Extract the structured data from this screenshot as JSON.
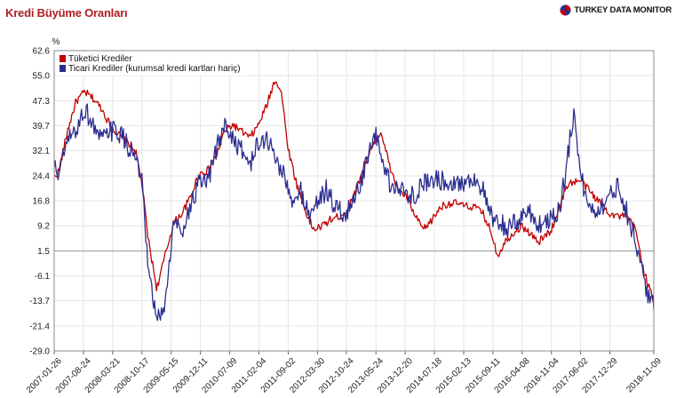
{
  "header": {
    "title": "Kredi Büyüme Oranları",
    "brand": "TURKEY DATA MONITOR"
  },
  "colors": {
    "consumer": "#c00000",
    "commercial": "#2b2e8f",
    "title": "#b01e23",
    "baseline": "#999999"
  },
  "chart_data": {
    "type": "line",
    "title": "Kredi Büyüme Oranları",
    "ylabel": "%",
    "xlabel": "",
    "ylim": [
      -29.0,
      62.6
    ],
    "yticks": [
      "62.6",
      "55.0",
      "47.3",
      "39.7",
      "32.1",
      "24.4",
      "16.8",
      "9.2",
      "1.5",
      "-6.1",
      "-13.7",
      "-21.4",
      "-29.0"
    ],
    "reference_line": 1.5,
    "legend_position": "top-left",
    "xlim": [
      "2007-01-26",
      "2018-11-09"
    ],
    "xticks": [
      "2007-01-26",
      "2007-08-24",
      "2008-03-21",
      "2008-10-17",
      "2009-05-15",
      "2009-12-11",
      "2010-07-09",
      "2011-02-04",
      "2011-09-02",
      "2012-03-30",
      "2012-10-24",
      "2013-05-24",
      "2013-12-20",
      "2014-07-18",
      "2015-02-13",
      "2015-09-11",
      "2016-04-08",
      "2016-11-04",
      "2017-06-02",
      "2017-12-29",
      "2018-11-09"
    ],
    "series": [
      {
        "name": "Tüketici Krediler",
        "color": "#c00000",
        "points": [
          [
            "2007-01-26",
            24
          ],
          [
            "2007-03-01",
            26
          ],
          [
            "2007-05-01",
            38
          ],
          [
            "2007-07-01",
            47
          ],
          [
            "2007-09-01",
            50
          ],
          [
            "2007-11-01",
            48
          ],
          [
            "2008-01-01",
            45
          ],
          [
            "2008-03-01",
            40
          ],
          [
            "2008-05-01",
            37
          ],
          [
            "2008-07-01",
            35
          ],
          [
            "2008-09-01",
            32
          ],
          [
            "2008-10-17",
            22
          ],
          [
            "2008-12-01",
            5
          ],
          [
            "2009-02-01",
            -10
          ],
          [
            "2009-04-01",
            0
          ],
          [
            "2009-06-01",
            10
          ],
          [
            "2009-08-01",
            13
          ],
          [
            "2009-10-01",
            18
          ],
          [
            "2009-12-01",
            25
          ],
          [
            "2010-02-01",
            26
          ],
          [
            "2010-04-01",
            30
          ],
          [
            "2010-06-01",
            38
          ],
          [
            "2010-08-01",
            40
          ],
          [
            "2010-10-01",
            38
          ],
          [
            "2010-12-01",
            36
          ],
          [
            "2011-02-01",
            40
          ],
          [
            "2011-04-01",
            46
          ],
          [
            "2011-06-01",
            54
          ],
          [
            "2011-07-15",
            50
          ],
          [
            "2011-09-01",
            33
          ],
          [
            "2011-11-01",
            22
          ],
          [
            "2012-01-01",
            14
          ],
          [
            "2012-03-01",
            8
          ],
          [
            "2012-05-01",
            9
          ],
          [
            "2012-07-01",
            11
          ],
          [
            "2012-09-01",
            12
          ],
          [
            "2012-11-01",
            14
          ],
          [
            "2013-01-01",
            20
          ],
          [
            "2013-03-01",
            28
          ],
          [
            "2013-05-24",
            35
          ],
          [
            "2013-07-01",
            38
          ],
          [
            "2013-09-01",
            27
          ],
          [
            "2013-11-01",
            20
          ],
          [
            "2014-01-01",
            18
          ],
          [
            "2014-03-01",
            12
          ],
          [
            "2014-05-01",
            8
          ],
          [
            "2014-07-01",
            11
          ],
          [
            "2014-09-01",
            15
          ],
          [
            "2014-11-01",
            16
          ],
          [
            "2015-01-01",
            16
          ],
          [
            "2015-03-01",
            15
          ],
          [
            "2015-05-01",
            15
          ],
          [
            "2015-07-01",
            13
          ],
          [
            "2015-09-01",
            7
          ],
          [
            "2015-10-15",
            0
          ],
          [
            "2015-12-01",
            4
          ],
          [
            "2016-02-01",
            7
          ],
          [
            "2016-04-08",
            9
          ],
          [
            "2016-06-01",
            7
          ],
          [
            "2016-08-01",
            4
          ],
          [
            "2016-11-04",
            8
          ],
          [
            "2017-01-01",
            15
          ],
          [
            "2017-03-01",
            22
          ],
          [
            "2017-06-02",
            23
          ],
          [
            "2017-08-01",
            20
          ],
          [
            "2017-10-01",
            17
          ],
          [
            "2017-12-29",
            13
          ],
          [
            "2018-03-01",
            12
          ],
          [
            "2018-05-01",
            12
          ],
          [
            "2018-07-01",
            8
          ],
          [
            "2018-09-01",
            -5
          ],
          [
            "2018-11-09",
            -14
          ]
        ]
      },
      {
        "name": "Ticari Krediler (kurumsal kredi kartları hariç)",
        "color": "#2b2e8f",
        "points": [
          [
            "2007-01-26",
            27
          ],
          [
            "2007-03-01",
            25
          ],
          [
            "2007-05-01",
            35
          ],
          [
            "2007-07-01",
            38
          ],
          [
            "2007-09-01",
            45
          ],
          [
            "2007-11-01",
            40
          ],
          [
            "2008-01-01",
            35
          ],
          [
            "2008-03-01",
            38
          ],
          [
            "2008-05-01",
            38
          ],
          [
            "2008-07-01",
            34
          ],
          [
            "2008-09-01",
            30
          ],
          [
            "2008-10-17",
            22
          ],
          [
            "2008-12-01",
            -5
          ],
          [
            "2009-02-01",
            -20
          ],
          [
            "2009-04-01",
            -15
          ],
          [
            "2009-06-01",
            10
          ],
          [
            "2009-08-01",
            8
          ],
          [
            "2009-10-01",
            15
          ],
          [
            "2009-12-01",
            22
          ],
          [
            "2010-02-01",
            22
          ],
          [
            "2010-04-01",
            32
          ],
          [
            "2010-06-01",
            40
          ],
          [
            "2010-08-01",
            36
          ],
          [
            "2010-10-01",
            32
          ],
          [
            "2010-12-01",
            28
          ],
          [
            "2011-02-01",
            34
          ],
          [
            "2011-04-01",
            36
          ],
          [
            "2011-06-01",
            30
          ],
          [
            "2011-08-01",
            25
          ],
          [
            "2011-10-01",
            15
          ],
          [
            "2011-12-01",
            20
          ],
          [
            "2012-02-01",
            12
          ],
          [
            "2012-04-01",
            17
          ],
          [
            "2012-06-01",
            20
          ],
          [
            "2012-08-01",
            15
          ],
          [
            "2012-10-24",
            12
          ],
          [
            "2012-12-01",
            17
          ],
          [
            "2013-02-01",
            22
          ],
          [
            "2013-04-01",
            30
          ],
          [
            "2013-05-24",
            37
          ],
          [
            "2013-07-01",
            30
          ],
          [
            "2013-09-01",
            22
          ],
          [
            "2013-12-20",
            19
          ],
          [
            "2014-03-01",
            19
          ],
          [
            "2014-05-01",
            22
          ],
          [
            "2014-07-18",
            24
          ],
          [
            "2014-09-01",
            23
          ],
          [
            "2014-11-01",
            23
          ],
          [
            "2015-02-13",
            22
          ],
          [
            "2015-05-01",
            24
          ],
          [
            "2015-07-01",
            20
          ],
          [
            "2015-09-11",
            10
          ],
          [
            "2015-11-01",
            10
          ],
          [
            "2016-01-01",
            8
          ],
          [
            "2016-04-08",
            12
          ],
          [
            "2016-06-01",
            14
          ],
          [
            "2016-08-01",
            9
          ],
          [
            "2016-11-04",
            12
          ],
          [
            "2017-01-01",
            14
          ],
          [
            "2017-03-01",
            30
          ],
          [
            "2017-04-15",
            45
          ],
          [
            "2017-06-02",
            24
          ],
          [
            "2017-08-01",
            15
          ],
          [
            "2017-10-01",
            14
          ],
          [
            "2017-12-29",
            18
          ],
          [
            "2018-03-01",
            22
          ],
          [
            "2018-05-01",
            13
          ],
          [
            "2018-07-01",
            5
          ],
          [
            "2018-09-01",
            -8
          ],
          [
            "2018-11-09",
            -16
          ]
        ]
      }
    ]
  }
}
